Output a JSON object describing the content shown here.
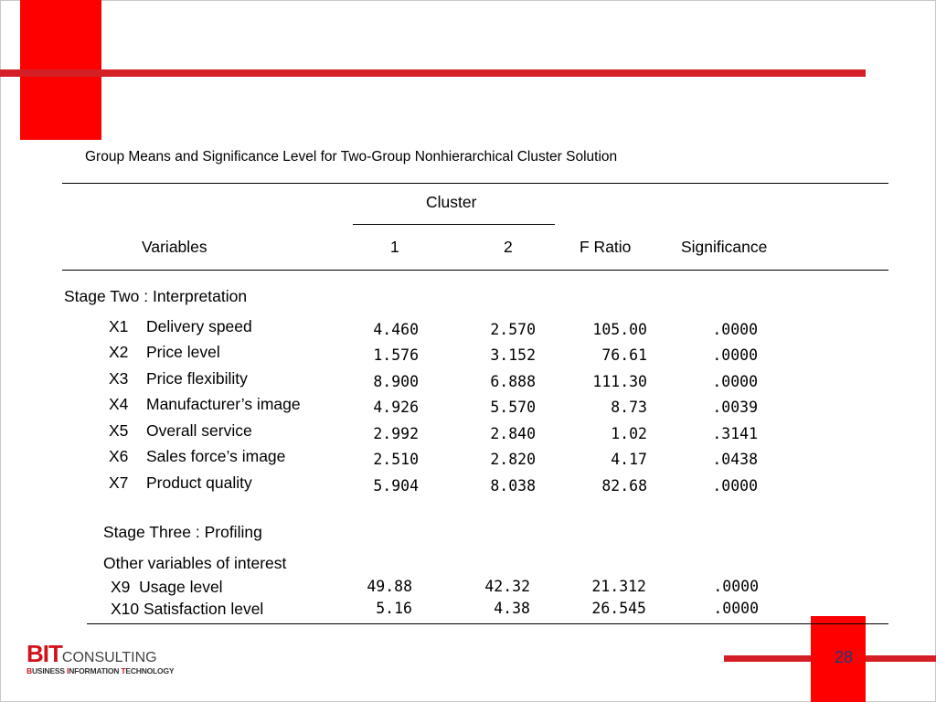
{
  "title": "Group Means and Significance Level for Two-Group Nonhierarchical Cluster Solution",
  "header": {
    "cluster": "Cluster",
    "variables": "Variables",
    "col1": "1",
    "col2": "2",
    "f_ratio": "F Ratio",
    "significance": "Significance"
  },
  "stage_two": {
    "label": "Stage Two : Interpretation",
    "rows": [
      {
        "code": "X1",
        "name": "Delivery speed",
        "c1": "4.460",
        "c2": "2.570",
        "f": "105.00",
        "sig": ".0000"
      },
      {
        "code": "X2",
        "name": "Price level",
        "c1": "1.576",
        "c2": "3.152",
        "f": "76.61",
        "sig": ".0000"
      },
      {
        "code": "X3",
        "name": "Price flexibility",
        "c1": "8.900",
        "c2": "6.888",
        "f": "111.30",
        "sig": ".0000"
      },
      {
        "code": "X4",
        "name": "Manufacturer’s image",
        "c1": "4.926",
        "c2": "5.570",
        "f": "8.73",
        "sig": ".0039"
      },
      {
        "code": "X5",
        "name": "Overall service",
        "c1": "2.992",
        "c2": "2.840",
        "f": "1.02",
        "sig": ".3141"
      },
      {
        "code": "X6",
        "name": "Sales force’s image",
        "c1": "2.510",
        "c2": "2.820",
        "f": "4.17",
        "sig": ".0438"
      },
      {
        "code": "X7",
        "name": "Product quality",
        "c1": "5.904",
        "c2": "8.038",
        "f": "82.68",
        "sig": ".0000"
      }
    ]
  },
  "stage_three": {
    "label": "Stage Three : Profiling",
    "sublabel": "Other variables of interest",
    "rows": [
      {
        "name": "X9  Usage level",
        "c1": "49.88",
        "c2": "42.32",
        "f": "21.312",
        "sig": ".0000"
      },
      {
        "name": "X10 Satisfaction level",
        "c1": "5.16",
        "c2": "4.38",
        "f": "26.545",
        "sig": ".0000"
      }
    ]
  },
  "logo": {
    "bit": "BIT",
    "consulting": "CONSULTING",
    "sub_b": "B",
    "sub_usiness": "USINESS ",
    "sub_i": "I",
    "sub_nformation": "NFORMATION ",
    "sub_t": "T",
    "sub_echnology": "ECHNOLOGY"
  },
  "page_number": "28",
  "colors": {
    "accent_red": "#fe0000",
    "bar_red": "#d51f26"
  }
}
